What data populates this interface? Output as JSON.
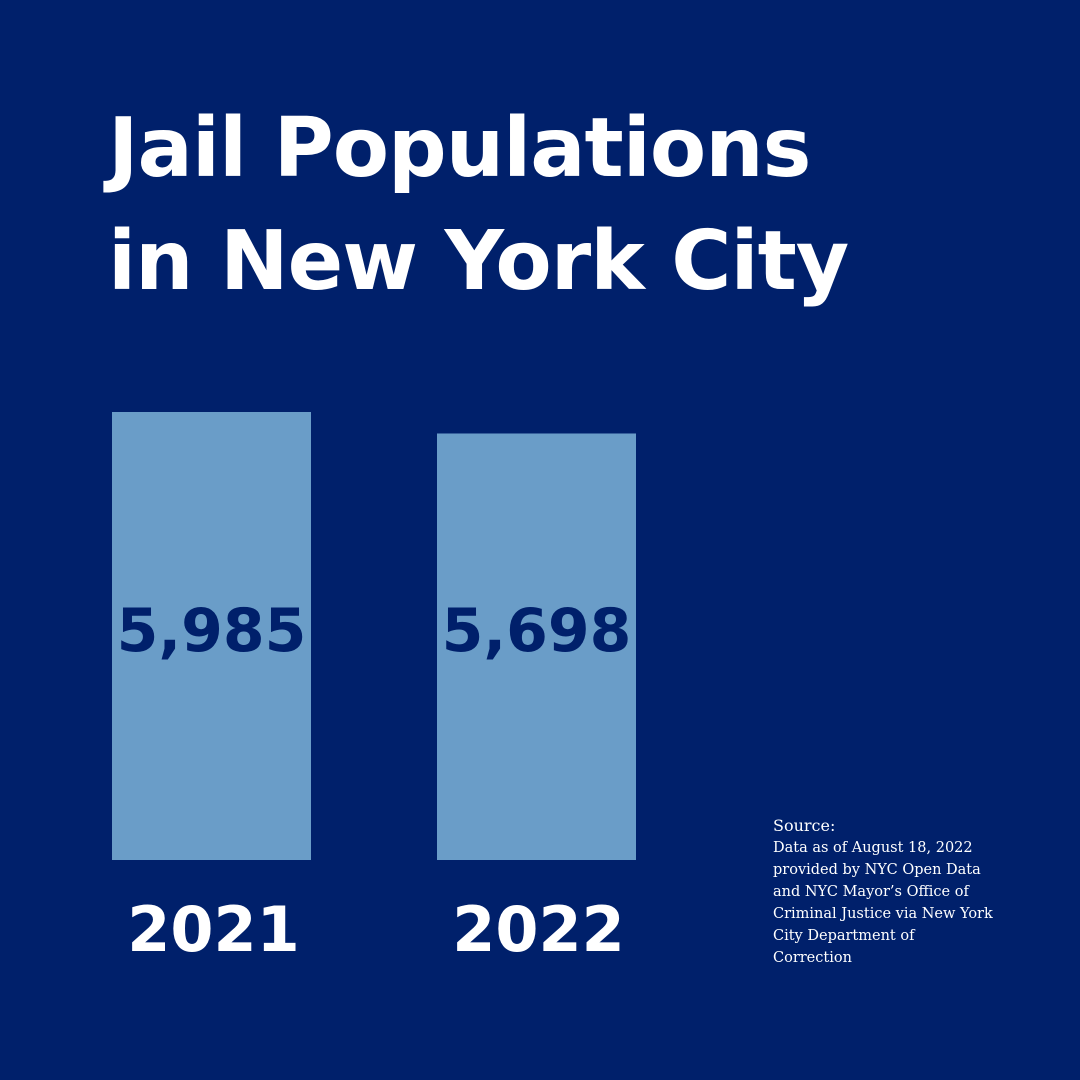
{
  "chart_data": {
    "type": "bar",
    "title": "Jail Populations in New York City",
    "title_lines": [
      "Jail Populations",
      "in New York City"
    ],
    "categories": [
      "2021",
      "2022"
    ],
    "values": [
      5985,
      5698
    ],
    "value_labels": [
      "5,985",
      "5,698"
    ],
    "xlabel": "",
    "ylabel": "",
    "grid": false,
    "bar_color": "#6a9dc8",
    "background_color": "#00206b"
  },
  "source": {
    "heading": "Source:",
    "text": "Data as of August 18, 2022 provided by NYC Open Data and NYC Mayor’s Office of Criminal Justice via New York City Department of Correction"
  }
}
